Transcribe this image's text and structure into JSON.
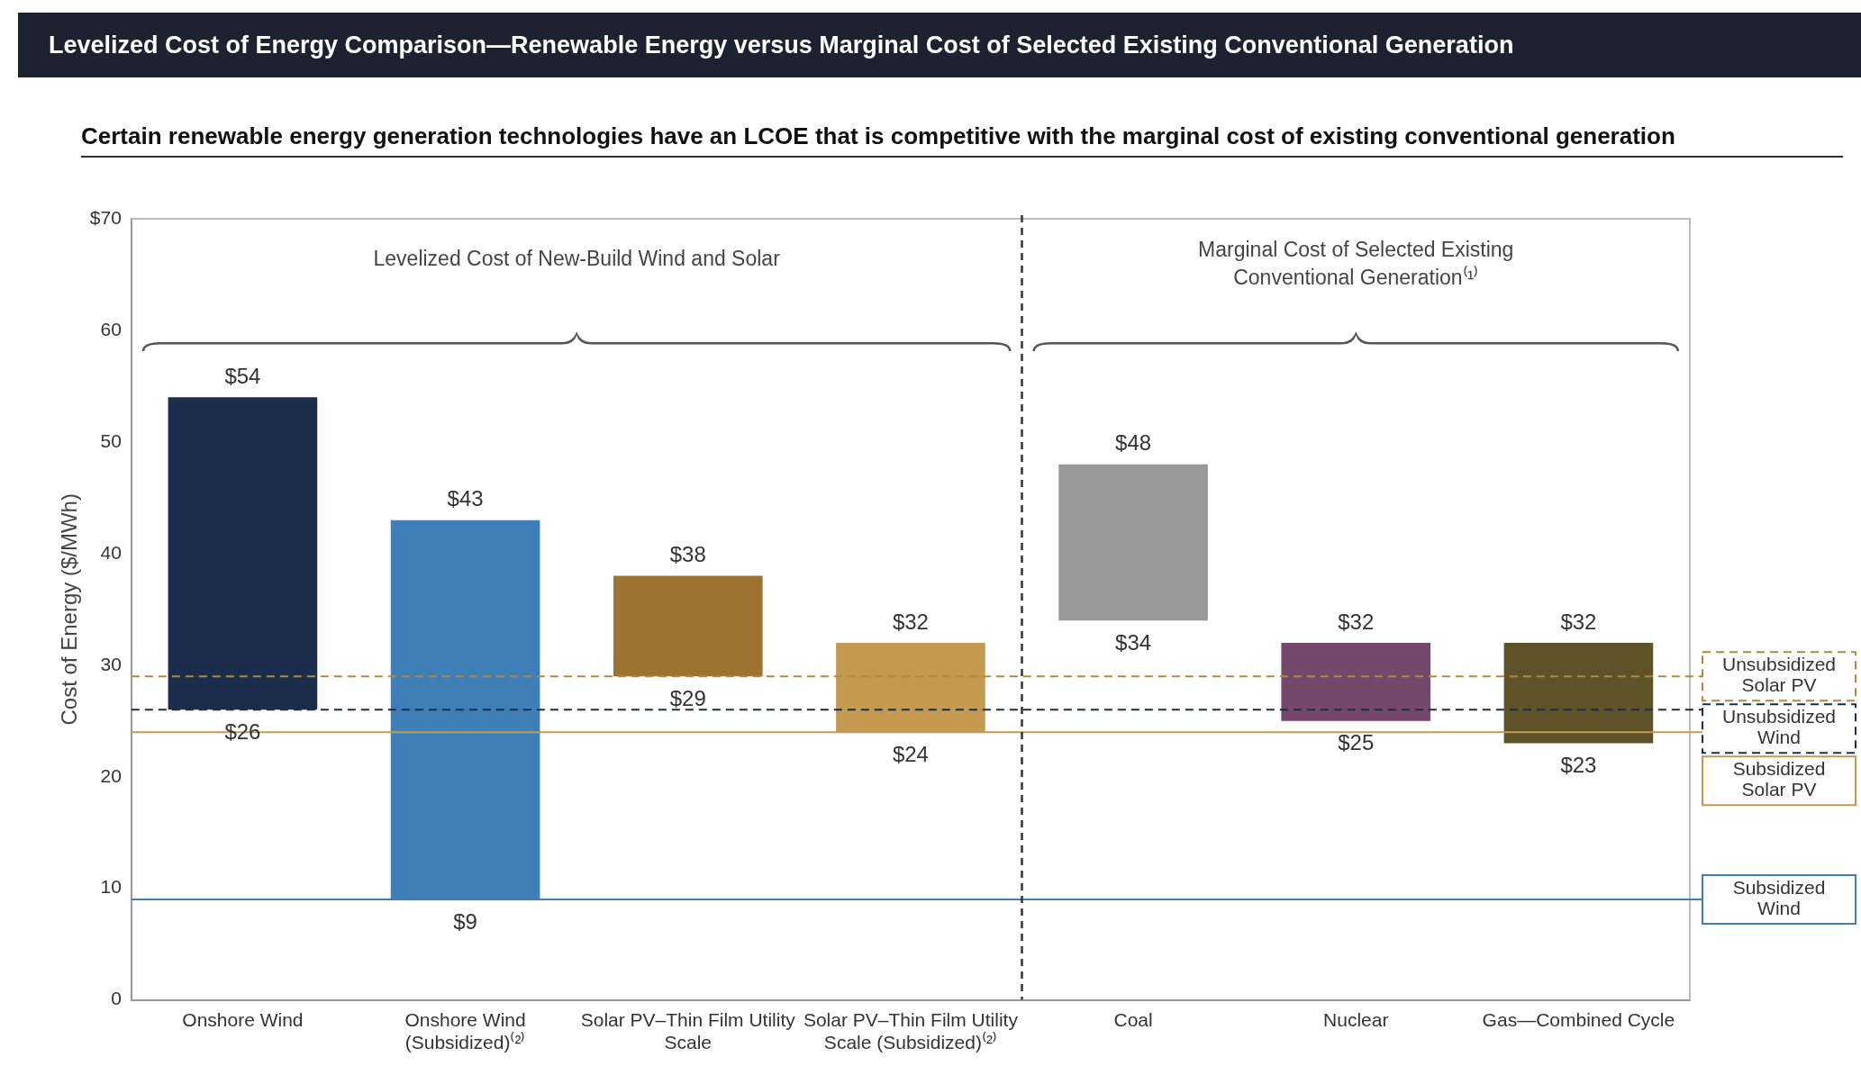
{
  "chart_data": {
    "type": "bar",
    "title": "Levelized Cost of Energy Comparison—Renewable Energy versus Marginal Cost of Selected Existing Conventional Generation",
    "subtitle": "Certain renewable energy generation technologies have an LCOE that is competitive with the marginal cost of existing conventional generation",
    "ylabel": "Cost of Energy ($/MWh)",
    "categories": [
      "Onshore Wind",
      "Onshore Wind (Subsidized)⁽²⁾",
      "Solar PV–Thin Film Utility Scale",
      "Solar PV–Thin Film Utility Scale (Subsidized)⁽²⁾",
      "Coal",
      "Nuclear",
      "Gas—Combined Cycle"
    ],
    "base": [
      26,
      9,
      29,
      24,
      34,
      25,
      23
    ],
    "values": [
      28,
      34,
      9,
      8,
      14,
      7,
      9
    ],
    "colors": [
      "#1c2d4b",
      "#3f7fb8",
      "#9c7330",
      "#c49a50",
      "#999999",
      "#74476b",
      "#5e5328"
    ],
    "ylim": [
      0,
      70
    ],
    "yticks": [
      0,
      10,
      20,
      30,
      40,
      50,
      60,
      {
        "value": 70,
        "label": "$70"
      }
    ],
    "grid": false,
    "legend": false,
    "annotations": [
      "Levelized Cost of New-Build Wind and Solar",
      "Marginal Cost of Selected Existing Conventional Generation⁽¹⁾",
      {
        "text": "$54",
        "x": "Onshore Wind",
        "y": 54
      },
      {
        "text": "$26",
        "x": "Onshore Wind",
        "y": 26
      },
      {
        "text": "$43",
        "x": "Onshore Wind (Subsidized)⁽²⁾",
        "y": 43
      },
      {
        "text": "$9",
        "x": "Onshore Wind (Subsidized)⁽²⁾",
        "y": 9
      },
      {
        "text": "$38",
        "x": "Solar PV–Thin Film Utility Scale",
        "y": 38
      },
      {
        "text": "$29",
        "x": "Solar PV–Thin Film Utility Scale",
        "y": 29
      },
      {
        "text": "$32",
        "x": "Solar PV–Thin Film Utility Scale (Subsidized)⁽²⁾",
        "y": 32
      },
      {
        "text": "$24",
        "x": "Solar PV–Thin Film Utility Scale (Subsidized)⁽²⁾",
        "y": 24
      },
      {
        "text": "$48",
        "x": "Coal",
        "y": 48
      },
      {
        "text": "$34",
        "x": "Coal",
        "y": 34
      },
      {
        "text": "$32",
        "x": "Nuclear",
        "y": 32
      },
      {
        "text": "$25",
        "x": "Nuclear",
        "y": 25
      },
      {
        "text": "$32",
        "x": "Gas—Combined Cycle",
        "y": 32
      },
      {
        "text": "$23",
        "x": "Gas—Combined Cycle",
        "y": 23
      }
    ],
    "ref_lines": [
      {
        "axis": "y",
        "value": 29,
        "label": "Unsubsidized Solar PV",
        "color": "#b08a3c",
        "line_style": "dashed"
      },
      {
        "axis": "y",
        "value": 26,
        "label": "Unsubsidized Wind",
        "color": "#1c2d4b",
        "line_style": "dashed"
      },
      {
        "axis": "y",
        "value": 24,
        "label": "Subsidized Solar PV",
        "color": "#c49a50",
        "line_style": "solid"
      },
      {
        "axis": "y",
        "value": 9,
        "label": "Subsidized Wind",
        "color": "#3f7fb8",
        "line_style": "solid"
      }
    ]
  }
}
